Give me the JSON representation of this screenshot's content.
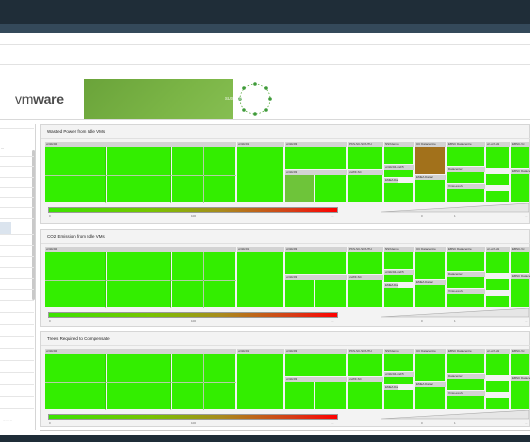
{
  "banner": {
    "vm": "vm",
    "ware": "ware",
    "sustainability_text": "SUSTAINABILITY"
  },
  "sidebar": {
    "title": "...",
    "footer": "... ... ..."
  },
  "panels": [
    {
      "title": "Wasted Power from Idle VMs",
      "group_labels": [
        "vc3dc02",
        "vc3dc01",
        "vc3dc03",
        "PKS-SC-SOUTH",
        "NSXdemo",
        "UC Datacentre",
        "EBSC Datacentre",
        "vc-vcf-d1",
        "EBSC-Vc"
      ],
      "sub_labels": [
        "vc3dc03",
        "vsWF-SC",
        "vc3dc04-vsF5",
        "EMEA Datac",
        "Datacenter",
        "Vmw-ew-rk",
        "EBSC Datacenter"
      ],
      "legend_ticks": [
        "0",
        "100",
        "...",
        "0",
        "1",
        "..."
      ],
      "colors": [
        "#33ee00",
        "#a2711b",
        "#6ec43a",
        "#d3d3d3"
      ]
    },
    {
      "title": "CO2 Emission from Idle VMs",
      "group_labels": [
        "vc3dc02",
        "vc3dc01",
        "vc3dc03",
        "PKS-SC-SOUTH",
        "NSXdemo",
        "UC Datacentre",
        "EBSC Datacentre",
        "vc-vcf-d1",
        "EBSC-Vc"
      ],
      "sub_labels": [
        "vc3dc03",
        "vsWF-SC",
        "vc3dc04-vsF5",
        "EMEA Datac",
        "Datacenter",
        "Vmw-ew-rk",
        "EBSC Datacenter"
      ],
      "legend_ticks": [
        "0",
        "100",
        "...",
        "0",
        "1",
        "..."
      ],
      "colors": [
        "#33ee00",
        "#d3d3d3"
      ]
    },
    {
      "title": "Trees Required to Compensate",
      "group_labels": [
        "vc3dc02",
        "vc3dc01",
        "vc3dc03",
        "PKS-SC-SOUTH",
        "NSXdemo",
        "UC Datacentre",
        "EBSC Datacentre",
        "vc-vcf-d1",
        "EBSC-Vc"
      ],
      "sub_labels": [
        "vc3dc03",
        "vsWF-SC",
        "vc3dc04-vsF5",
        "EMEA Datac",
        "Datacenter",
        "Vmw-ew-rk",
        "EBSC Datacenter"
      ],
      "legend_ticks": [
        "0",
        "100",
        "...",
        "0",
        "1",
        "..."
      ],
      "colors": [
        "#33ee00",
        "#d3d3d3"
      ]
    }
  ]
}
